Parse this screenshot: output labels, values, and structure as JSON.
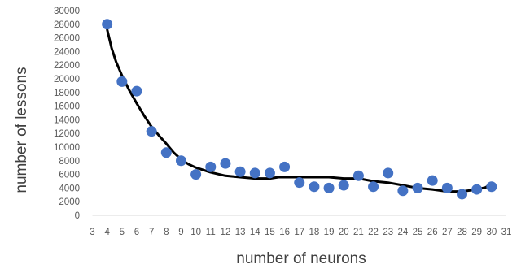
{
  "chart_data": {
    "type": "scatter",
    "xlabel": "number of neurons",
    "ylabel": "number of lessons",
    "xlim": [
      3,
      31
    ],
    "ylim": [
      0,
      30000
    ],
    "x_ticks": [
      3,
      4,
      5,
      6,
      7,
      8,
      9,
      10,
      11,
      12,
      13,
      14,
      15,
      16,
      17,
      18,
      19,
      20,
      21,
      22,
      23,
      24,
      25,
      26,
      27,
      28,
      29,
      30,
      31
    ],
    "y_ticks": [
      0,
      2000,
      4000,
      6000,
      8000,
      10000,
      12000,
      14000,
      16000,
      18000,
      20000,
      22000,
      24000,
      26000,
      28000,
      30000
    ],
    "grid": false,
    "legend": "none",
    "colors": {
      "points": "#4472c4",
      "trend": "#000000",
      "axis": "#d9d9d9"
    },
    "series": [
      {
        "kind": "points",
        "x": [
          4,
          5,
          6,
          7,
          8,
          9,
          10,
          11,
          12,
          13,
          14,
          15,
          16,
          17,
          18,
          19,
          20,
          21,
          22,
          23,
          24,
          25,
          26,
          27,
          28,
          29,
          30
        ],
        "y": [
          28000,
          19600,
          18200,
          12300,
          9200,
          8000,
          6000,
          7100,
          7600,
          6400,
          6200,
          6200,
          7100,
          4800,
          4200,
          4000,
          4400,
          5800,
          4200,
          6200,
          3600,
          4000,
          5100,
          4000,
          3100,
          3800,
          4200
        ]
      },
      {
        "kind": "trendline",
        "x": [
          4,
          4.3,
          4.6,
          5,
          5.5,
          6,
          6.5,
          7,
          7.5,
          8,
          8.5,
          9,
          9.5,
          10,
          11,
          12,
          13,
          14,
          15,
          15.6,
          16,
          17,
          18,
          19,
          20,
          21,
          22,
          23,
          24,
          25,
          26,
          27,
          28,
          29,
          29.6,
          30
        ],
        "y": [
          27200,
          24500,
          22500,
          20500,
          18300,
          16400,
          14600,
          13000,
          11700,
          10500,
          9200,
          8200,
          7500,
          7000,
          6300,
          5800,
          5600,
          5400,
          5400,
          5600,
          5600,
          5600,
          5600,
          5600,
          5400,
          5400,
          5000,
          4800,
          4400,
          4000,
          3800,
          3500,
          3500,
          3800,
          4100,
          4700
        ]
      }
    ]
  }
}
